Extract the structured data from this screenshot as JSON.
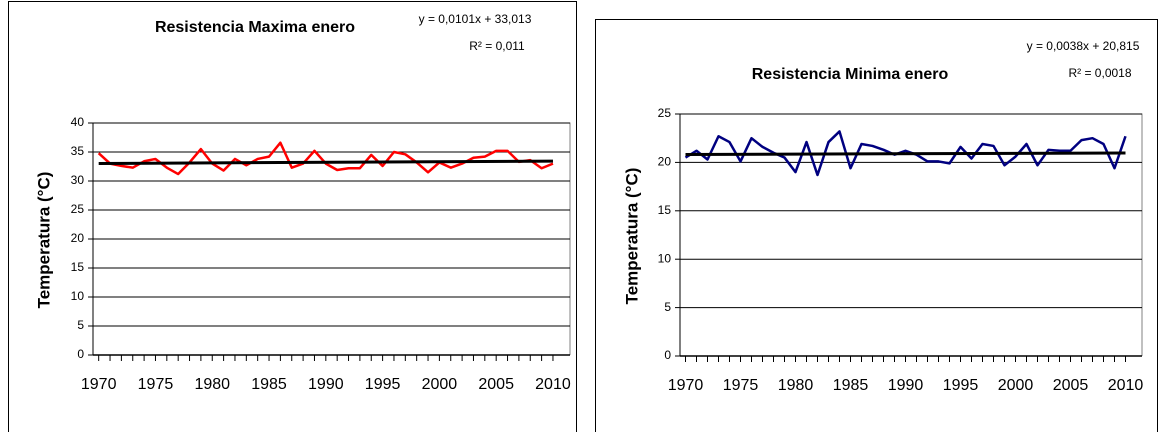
{
  "chart_data": [
    {
      "type": "line",
      "title": "Resistencia Maxima enero",
      "equation": "y = 0,0101x + 33,013",
      "r_squared": "R² = 0,011",
      "y_label": "Temperatura (°C)",
      "x": [
        1970,
        1971,
        1972,
        1973,
        1974,
        1975,
        1976,
        1977,
        1978,
        1979,
        1980,
        1981,
        1982,
        1983,
        1984,
        1985,
        1986,
        1987,
        1988,
        1989,
        1990,
        1991,
        1992,
        1993,
        1994,
        1995,
        1996,
        1997,
        1998,
        1999,
        2000,
        2001,
        2002,
        2003,
        2004,
        2005,
        2006,
        2007,
        2008,
        2009,
        2010
      ],
      "series": [
        {
          "color": "#ff0000",
          "values": [
            34.8,
            33.0,
            32.6,
            32.3,
            33.4,
            33.8,
            32.3,
            31.2,
            33.2,
            35.5,
            33.0,
            31.8,
            33.8,
            32.7,
            33.8,
            34.2,
            36.6,
            32.3,
            33.0,
            35.2,
            33.0,
            31.9,
            32.2,
            32.2,
            34.5,
            32.6,
            35.0,
            34.6,
            33.2,
            31.5,
            33.2,
            32.3,
            33.0,
            34.0,
            34.2,
            35.2,
            35.2,
            33.3,
            33.6,
            32.2,
            33.0
          ]
        }
      ],
      "trendline": {
        "color": "#000000",
        "x": [
          1970,
          2010
        ],
        "values": [
          33.02,
          33.43
        ]
      },
      "xlim": [
        1969.5,
        2011.5
      ],
      "xticks": [
        1970,
        1975,
        1980,
        1985,
        1990,
        1995,
        2000,
        2005,
        2010
      ],
      "ylim": [
        0,
        40
      ],
      "yticks": [
        0,
        5,
        10,
        15,
        20,
        25,
        30,
        35,
        40
      ],
      "grid": true
    },
    {
      "type": "line",
      "title": "Resistencia Minima enero",
      "equation": "y = 0,0038x + 20,815",
      "r_squared": "R² = 0,0018",
      "y_label": "Temperatura (°C)",
      "x": [
        1970,
        1971,
        1972,
        1973,
        1974,
        1975,
        1976,
        1977,
        1978,
        1979,
        1980,
        1981,
        1982,
        1983,
        1984,
        1985,
        1986,
        1987,
        1988,
        1989,
        1990,
        1991,
        1992,
        1993,
        1994,
        1995,
        1996,
        1997,
        1998,
        1999,
        2000,
        2001,
        2002,
        2003,
        2004,
        2005,
        2006,
        2007,
        2008,
        2009,
        2010
      ],
      "series": [
        {
          "color": "#000080",
          "values": [
            20.5,
            21.2,
            20.3,
            22.7,
            22.1,
            20.1,
            22.5,
            21.6,
            21.0,
            20.5,
            19.0,
            22.1,
            18.7,
            22.1,
            23.2,
            19.4,
            21.9,
            21.7,
            21.3,
            20.8,
            21.2,
            20.8,
            20.1,
            20.1,
            19.9,
            21.6,
            20.4,
            21.9,
            21.7,
            19.7,
            20.6,
            21.9,
            19.7,
            21.3,
            21.2,
            21.2,
            22.3,
            22.5,
            21.9,
            19.4,
            22.7
          ]
        }
      ],
      "trendline": {
        "color": "#000000",
        "x": [
          1970,
          2010
        ],
        "values": [
          20.82,
          20.97
        ]
      },
      "xlim": [
        1969.5,
        2011.5
      ],
      "xticks": [
        1970,
        1975,
        1980,
        1985,
        1990,
        1995,
        2000,
        2005,
        2010
      ],
      "ylim": [
        0,
        25
      ],
      "yticks": [
        0,
        5,
        10,
        15,
        20,
        25
      ],
      "grid": true
    }
  ]
}
